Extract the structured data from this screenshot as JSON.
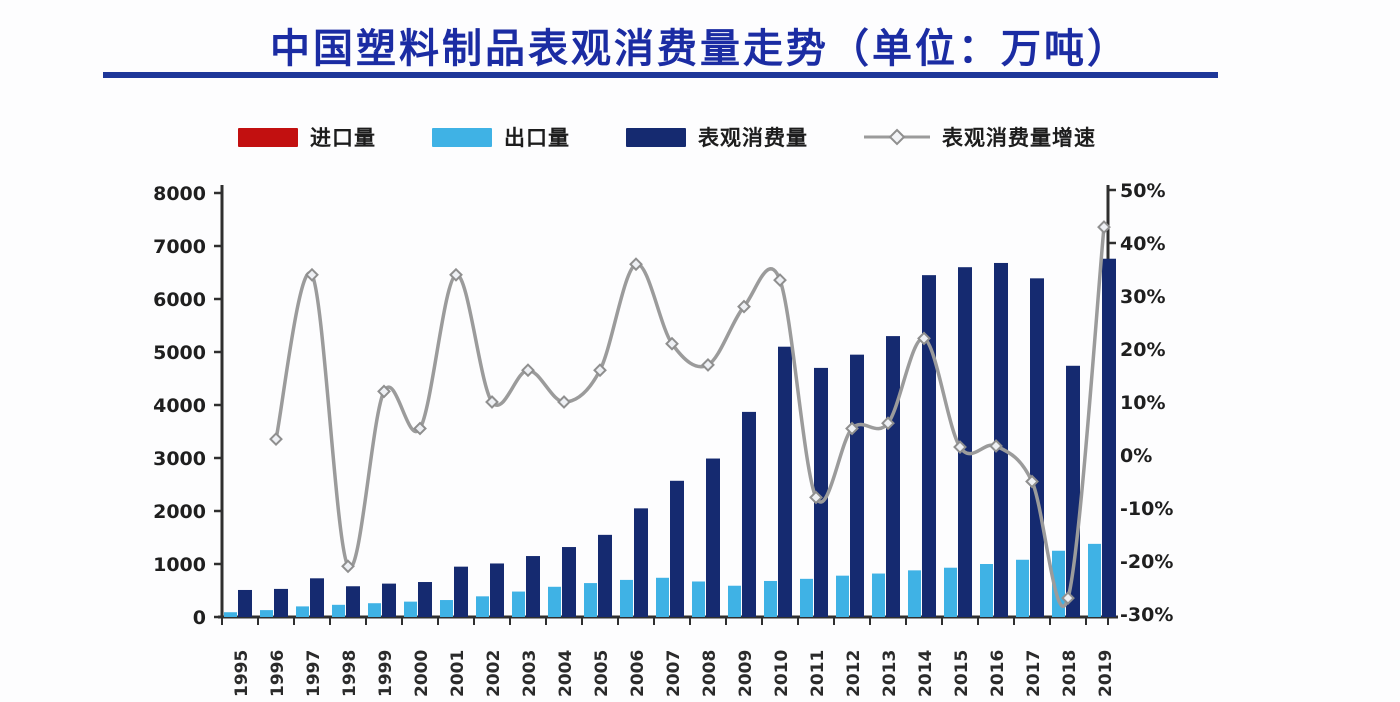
{
  "title": "中国塑料制品表观消费量走势（单位：万吨）",
  "colors": {
    "title_blue": "#1b2ca3",
    "underline_blue": "#1e3799",
    "import_red": "#c21010",
    "export_lightblue": "#3fb2e5",
    "consumption_navy": "#152a70",
    "growth_gray": "#9b9b9b",
    "axis_dark": "#2f2f2f",
    "tick_text": "#1f1f1f"
  },
  "legend": [
    {
      "label": "进口量",
      "color": "#c21010",
      "type": "bar"
    },
    {
      "label": "出口量",
      "color": "#3fb2e5",
      "type": "bar"
    },
    {
      "label": "表观消费量",
      "color": "#152a70",
      "type": "bar"
    },
    {
      "label": "表观消费量增速",
      "color": "#9b9b9b",
      "type": "line"
    }
  ],
  "chart_data": {
    "type": "bar+line combo",
    "title": "中国塑料制品表观消费量走势（单位：万吨）",
    "categories": [
      1995,
      1996,
      1997,
      1998,
      1999,
      2000,
      2001,
      2002,
      2003,
      2004,
      2005,
      2006,
      2007,
      2008,
      2009,
      2010,
      2011,
      2012,
      2013,
      2014,
      2015,
      2016,
      2017,
      2018,
      2019
    ],
    "series": [
      {
        "name": "进口量",
        "type": "bar",
        "axis": "left",
        "color": "#c21010",
        "values": [
          0,
          0,
          0,
          0,
          0,
          0,
          0,
          0,
          0,
          0,
          0,
          0,
          0,
          0,
          0,
          0,
          0,
          0,
          0,
          0,
          0,
          0,
          0,
          0,
          0
        ]
      },
      {
        "name": "出口量",
        "type": "bar",
        "axis": "left",
        "color": "#3fb2e5",
        "values": [
          90,
          130,
          200,
          230,
          260,
          290,
          320,
          390,
          480,
          570,
          640,
          700,
          740,
          670,
          590,
          680,
          720,
          780,
          820,
          880,
          930,
          1000,
          1080,
          1250,
          1380
        ]
      },
      {
        "name": "表观消费量",
        "type": "bar",
        "axis": "left",
        "color": "#152a70",
        "values": [
          510,
          530,
          730,
          580,
          630,
          660,
          950,
          1010,
          1150,
          1320,
          1550,
          2050,
          2570,
          2990,
          3870,
          5100,
          4700,
          4950,
          5300,
          6450,
          6600,
          6680,
          6390,
          4740,
          6760
        ]
      },
      {
        "name": "表观消费量增速",
        "type": "line",
        "axis": "right",
        "color": "#9b9b9b",
        "unit": "%",
        "values": [
          null,
          3,
          34,
          -21,
          12,
          5,
          34,
          10,
          16,
          10,
          16,
          36,
          21,
          17,
          28,
          33,
          -8,
          5,
          6,
          22,
          1.5,
          1.7,
          -5,
          -27,
          43
        ]
      }
    ],
    "left_axis": {
      "min": 0,
      "max": 8000,
      "step": 1000,
      "ticks": [
        "0",
        "1000",
        "2000",
        "3000",
        "4000",
        "5000",
        "6000",
        "7000",
        "8000"
      ]
    },
    "right_axis": {
      "min": -30,
      "max": 50,
      "step": 10,
      "ticks": [
        "-30%",
        "-20%",
        "-10%",
        "0%",
        "10%",
        "20%",
        "30%",
        "40%",
        "50%"
      ]
    },
    "grid": false,
    "legend_position": "top"
  }
}
